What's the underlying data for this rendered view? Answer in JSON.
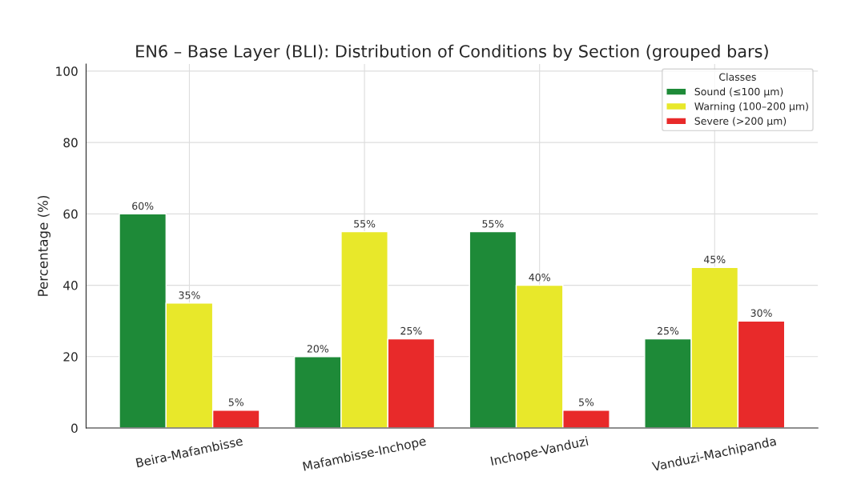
{
  "chart_data": {
    "type": "bar",
    "title": "EN6 – Base Layer (BLI): Distribution of Conditions by Section (grouped bars)",
    "ylabel": "Percentage (%)",
    "legend_title": "Classes",
    "legend": "top right",
    "grid": true,
    "categories": [
      "Beira-Mafambisse",
      "Mafambisse-Inchope",
      "Inchope-Vanduzi",
      "Vanduzi-Machipanda"
    ],
    "ylim": [
      0,
      102
    ],
    "yticks": [
      0,
      20,
      40,
      60,
      80,
      100
    ],
    "series": [
      {
        "name": "Sound (≤100 µm)",
        "color": "#1e8a38",
        "values": [
          60,
          20,
          55,
          25
        ],
        "value_labels": [
          "60%",
          "20%",
          "55%",
          "25%"
        ]
      },
      {
        "name": "Warning (100–200 µm)",
        "color": "#e8e82a",
        "values": [
          35,
          55,
          40,
          45
        ],
        "value_labels": [
          "35%",
          "55%",
          "40%",
          "45%"
        ]
      },
      {
        "name": "Severe (>200 µm)",
        "color": "#e82a2a",
        "values": [
          5,
          25,
          5,
          30
        ],
        "value_labels": [
          "5%",
          "25%",
          "5%",
          "30%"
        ]
      }
    ]
  }
}
